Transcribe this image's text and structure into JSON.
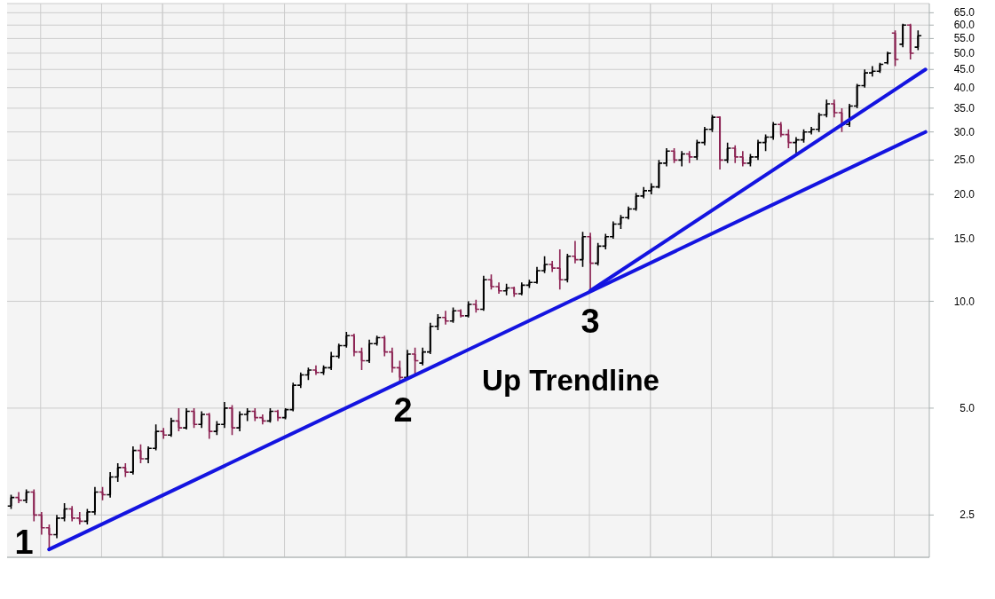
{
  "chart_data": {
    "type": "candlestick",
    "categories": [
      null,
      null,
      null,
      null,
      null,
      null,
      null,
      null,
      null,
      null,
      null,
      null,
      null,
      null,
      null,
      null,
      null,
      null,
      null,
      null,
      null,
      null,
      null,
      null,
      null,
      null,
      null,
      null,
      null,
      null,
      null,
      null,
      null,
      null,
      null,
      null,
      null,
      null,
      null,
      null,
      null,
      null,
      null,
      null,
      null,
      null,
      null,
      null,
      null,
      null,
      null,
      null,
      null,
      null,
      null,
      null,
      null,
      null,
      null,
      null,
      null,
      null,
      null,
      null,
      null,
      null,
      null,
      null,
      null,
      null,
      null,
      null,
      null,
      null,
      null,
      null,
      null,
      null,
      null,
      null,
      null,
      null,
      null,
      null,
      null,
      null,
      null,
      null,
      null,
      null,
      null,
      null,
      null,
      null,
      null,
      null,
      null,
      null,
      null,
      null,
      null,
      null,
      null,
      null,
      null,
      null,
      null,
      null,
      null,
      null,
      null,
      null,
      null,
      null,
      null,
      null,
      null,
      null,
      null,
      null,
      null
    ],
    "ohlc": [
      [
        2.65,
        2.85,
        2.6,
        2.8
      ],
      [
        2.8,
        2.9,
        2.7,
        2.75
      ],
      [
        2.75,
        2.95,
        2.7,
        2.9
      ],
      [
        2.9,
        2.95,
        2.4,
        2.5
      ],
      [
        2.5,
        2.55,
        2.2,
        2.3
      ],
      [
        2.3,
        2.35,
        2.0,
        2.2
      ],
      [
        2.2,
        2.5,
        2.15,
        2.45
      ],
      [
        2.45,
        2.7,
        2.4,
        2.6
      ],
      [
        2.6,
        2.65,
        2.4,
        2.45
      ],
      [
        2.45,
        2.55,
        2.35,
        2.4
      ],
      [
        2.4,
        2.6,
        2.35,
        2.55
      ],
      [
        2.55,
        3.0,
        2.5,
        2.9
      ],
      [
        2.9,
        3.0,
        2.75,
        2.85
      ],
      [
        2.85,
        3.3,
        2.8,
        3.2
      ],
      [
        3.2,
        3.5,
        3.1,
        3.4
      ],
      [
        3.4,
        3.5,
        3.2,
        3.3
      ],
      [
        3.3,
        3.9,
        3.25,
        3.8
      ],
      [
        3.8,
        3.95,
        3.5,
        3.6
      ],
      [
        3.6,
        3.9,
        3.5,
        3.85
      ],
      [
        3.85,
        4.5,
        3.8,
        4.3
      ],
      [
        4.3,
        4.4,
        4.1,
        4.2
      ],
      [
        4.2,
        4.7,
        4.15,
        4.6
      ],
      [
        4.6,
        5.0,
        4.3,
        4.4
      ],
      [
        4.4,
        5.0,
        4.35,
        4.9
      ],
      [
        4.9,
        5.0,
        4.4,
        4.5
      ],
      [
        4.5,
        4.9,
        4.4,
        4.8
      ],
      [
        4.8,
        4.85,
        4.1,
        4.3
      ],
      [
        4.3,
        4.6,
        4.2,
        4.5
      ],
      [
        4.5,
        5.2,
        4.4,
        5.0
      ],
      [
        5.0,
        5.1,
        4.2,
        4.4
      ],
      [
        4.4,
        4.9,
        4.3,
        4.8
      ],
      [
        4.8,
        5.0,
        4.6,
        4.9
      ],
      [
        4.9,
        5.0,
        4.6,
        4.7
      ],
      [
        4.7,
        4.8,
        4.5,
        4.6
      ],
      [
        4.6,
        5.0,
        4.55,
        4.9
      ],
      [
        4.9,
        4.95,
        4.6,
        4.7
      ],
      [
        4.7,
        5.0,
        4.65,
        4.95
      ],
      [
        4.95,
        5.9,
        4.9,
        5.8
      ],
      [
        5.8,
        6.3,
        5.7,
        6.2
      ],
      [
        6.2,
        6.5,
        6.0,
        6.4
      ],
      [
        6.4,
        6.6,
        6.2,
        6.3
      ],
      [
        6.3,
        6.6,
        6.2,
        6.5
      ],
      [
        6.5,
        7.2,
        6.4,
        7.0
      ],
      [
        7.0,
        7.6,
        6.9,
        7.5
      ],
      [
        7.5,
        8.2,
        7.4,
        8.0
      ],
      [
        8.0,
        8.1,
        7.0,
        7.2
      ],
      [
        7.2,
        7.4,
        6.4,
        6.8
      ],
      [
        6.8,
        7.8,
        6.7,
        7.6
      ],
      [
        7.6,
        8.0,
        7.5,
        7.9
      ],
      [
        7.9,
        8.0,
        7.0,
        7.2
      ],
      [
        7.2,
        7.4,
        6.3,
        6.5
      ],
      [
        6.5,
        6.8,
        5.9,
        6.1
      ],
      [
        6.1,
        7.3,
        6.1,
        7.1
      ],
      [
        7.1,
        7.4,
        6.2,
        6.8
      ],
      [
        6.7,
        7.4,
        6.6,
        7.2
      ],
      [
        7.2,
        8.7,
        7.1,
        8.5
      ],
      [
        8.5,
        9.2,
        8.3,
        9.0
      ],
      [
        9.0,
        9.4,
        8.6,
        8.8
      ],
      [
        8.8,
        9.6,
        8.7,
        9.4
      ],
      [
        9.4,
        9.5,
        9.0,
        9.1
      ],
      [
        9.1,
        10.0,
        9.0,
        9.8
      ],
      [
        9.8,
        10.1,
        9.3,
        9.5
      ],
      [
        9.5,
        11.8,
        9.4,
        11.5
      ],
      [
        11.5,
        11.9,
        10.8,
        11.0
      ],
      [
        11.0,
        11.3,
        10.5,
        10.7
      ],
      [
        10.7,
        11.2,
        10.4,
        10.9
      ],
      [
        10.9,
        11.0,
        10.3,
        10.5
      ],
      [
        10.5,
        11.3,
        10.4,
        11.1
      ],
      [
        11.1,
        11.5,
        10.9,
        11.3
      ],
      [
        11.3,
        12.5,
        11.2,
        12.2
      ],
      [
        12.2,
        13.4,
        12.0,
        12.7
      ],
      [
        12.7,
        13.0,
        12.1,
        12.4
      ],
      [
        12.4,
        14.0,
        10.8,
        11.5
      ],
      [
        11.5,
        13.6,
        11.3,
        13.4
      ],
      [
        13.4,
        14.8,
        12.8,
        13.1
      ],
      [
        13.1,
        15.7,
        12.5,
        15.2
      ],
      [
        15.2,
        15.6,
        10.7,
        12.8
      ],
      [
        12.8,
        14.6,
        12.6,
        14.3
      ],
      [
        14.3,
        15.5,
        14.0,
        15.2
      ],
      [
        15.2,
        16.8,
        15.0,
        16.5
      ],
      [
        16.5,
        17.5,
        16.0,
        17.2
      ],
      [
        17.2,
        18.5,
        17.0,
        18.2
      ],
      [
        18.2,
        20.2,
        18.0,
        19.8
      ],
      [
        19.8,
        21.0,
        19.5,
        20.5
      ],
      [
        20.5,
        21.5,
        20.0,
        21.0
      ],
      [
        21.0,
        25.0,
        20.8,
        24.5
      ],
      [
        24.5,
        27.0,
        24.0,
        26.5
      ],
      [
        26.5,
        27.0,
        24.5,
        25.0
      ],
      [
        25.0,
        26.5,
        24.0,
        26.0
      ],
      [
        26.0,
        26.5,
        24.5,
        25.5
      ],
      [
        25.5,
        28.5,
        25.0,
        28.0
      ],
      [
        28.0,
        31.0,
        27.5,
        30.5
      ],
      [
        30.5,
        33.5,
        30.0,
        33.0
      ],
      [
        33.0,
        33.2,
        23.5,
        25.0
      ],
      [
        25.0,
        28.0,
        24.5,
        27.0
      ],
      [
        27.0,
        27.5,
        24.5,
        25.5
      ],
      [
        25.5,
        26.5,
        24.0,
        24.5
      ],
      [
        24.5,
        26.0,
        24.0,
        25.5
      ],
      [
        25.5,
        28.5,
        25.0,
        28.0
      ],
      [
        28.0,
        29.5,
        26.5,
        29.0
      ],
      [
        29.0,
        32.0,
        28.5,
        31.5
      ],
      [
        31.5,
        32.0,
        29.0,
        29.5
      ],
      [
        29.5,
        30.5,
        27.0,
        28.0
      ],
      [
        28.0,
        29.0,
        26.0,
        28.5
      ],
      [
        28.5,
        30.5,
        28.0,
        30.0
      ],
      [
        30.0,
        31.0,
        29.5,
        30.5
      ],
      [
        30.5,
        34.0,
        30.0,
        33.5
      ],
      [
        33.5,
        37.0,
        33.0,
        36.0
      ],
      [
        36.0,
        37.0,
        33.0,
        34.0
      ],
      [
        34.0,
        35.0,
        30.0,
        31.5
      ],
      [
        31.5,
        36.0,
        31.0,
        35.5
      ],
      [
        35.5,
        41.0,
        35.0,
        40.5
      ],
      [
        40.5,
        45.0,
        40.0,
        44.0
      ],
      [
        44.0,
        46.0,
        43.0,
        44.5
      ],
      [
        44.5,
        47.0,
        44.0,
        46.5
      ],
      [
        47.0,
        50.5,
        46.5,
        50.0
      ],
      [
        57.0,
        58.0,
        46.0,
        48.0
      ],
      [
        53.0,
        60.5,
        52.0,
        60.0
      ],
      [
        60.0,
        60.5,
        48.0,
        50.0
      ],
      [
        52.0,
        58.0,
        51.0,
        56.0
      ],
      null
    ],
    "colors": [
      "#000000",
      "#8b2252",
      "#000000",
      "#8b2252",
      "#8b2252",
      "#8b2252",
      "#000000",
      "#000000",
      "#8b2252",
      "#8b2252",
      "#000000",
      "#000000",
      "#8b2252",
      "#000000",
      "#000000",
      "#8b2252",
      "#000000",
      "#8b2252",
      "#000000",
      "#000000",
      "#8b2252",
      "#000000",
      "#8b2252",
      "#000000",
      "#8b2252",
      "#000000",
      "#8b2252",
      "#000000",
      "#000000",
      "#8b2252",
      "#000000",
      "#000000",
      "#8b2252",
      "#8b2252",
      "#000000",
      "#8b2252",
      "#000000",
      "#000000",
      "#000000",
      "#000000",
      "#8b2252",
      "#000000",
      "#000000",
      "#000000",
      "#000000",
      "#8b2252",
      "#8b2252",
      "#000000",
      "#000000",
      "#8b2252",
      "#8b2252",
      "#8b2252",
      "#000000",
      "#8b2252",
      "#000000",
      "#000000",
      "#000000",
      "#8b2252",
      "#000000",
      "#8b2252",
      "#000000",
      "#8b2252",
      "#000000",
      "#8b2252",
      "#8b2252",
      "#000000",
      "#8b2252",
      "#000000",
      "#000000",
      "#000000",
      "#000000",
      "#8b2252",
      "#8b2252",
      "#000000",
      "#8b2252",
      "#000000",
      "#8b2252",
      "#000000",
      "#000000",
      "#000000",
      "#000000",
      "#000000",
      "#000000",
      "#000000",
      "#000000",
      "#000000",
      "#000000",
      "#8b2252",
      "#000000",
      "#8b2252",
      "#000000",
      "#000000",
      "#000000",
      "#8b2252",
      "#000000",
      "#8b2252",
      "#8b2252",
      "#000000",
      "#000000",
      "#000000",
      "#000000",
      "#8b2252",
      "#8b2252",
      "#000000",
      "#000000",
      "#000000",
      "#000000",
      "#000000",
      "#8b2252",
      "#8b2252",
      "#000000",
      "#000000",
      "#000000",
      "#000000",
      "#000000",
      "#000000",
      "#8b2252",
      "#000000",
      "#8b2252",
      "#000000",
      null
    ],
    "series": [
      {
        "type": "line",
        "color": "#1414e0",
        "values": [
          null,
          null,
          null,
          null,
          null,
          2,
          null,
          null,
          null,
          null,
          null,
          null,
          null,
          null,
          null,
          null,
          null,
          null,
          null,
          null,
          null,
          null,
          null,
          null,
          null,
          null,
          null,
          null,
          null,
          null,
          null,
          null,
          null,
          null,
          null,
          null,
          null,
          null,
          null,
          null,
          null,
          null,
          null,
          null,
          null,
          null,
          null,
          null,
          null,
          null,
          null,
          null,
          null,
          null,
          null,
          null,
          null,
          null,
          null,
          null,
          null,
          null,
          null,
          null,
          null,
          null,
          null,
          null,
          null,
          null,
          null,
          null,
          null,
          null,
          null,
          null,
          null,
          null,
          null,
          null,
          null,
          null,
          null,
          null,
          null,
          null,
          null,
          null,
          null,
          null,
          null,
          null,
          null,
          null,
          null,
          null,
          null,
          null,
          null,
          null,
          null,
          null,
          null,
          null,
          null,
          null,
          null,
          null,
          null,
          null,
          null,
          null,
          null,
          null,
          null,
          null,
          null,
          null,
          null,
          null,
          30
        ]
      },
      {
        "type": "line",
        "color": "#1414e0",
        "values": [
          null,
          null,
          null,
          null,
          null,
          null,
          null,
          null,
          null,
          null,
          null,
          null,
          null,
          null,
          null,
          null,
          null,
          null,
          null,
          null,
          null,
          null,
          null,
          null,
          null,
          null,
          null,
          null,
          null,
          null,
          null,
          null,
          null,
          null,
          null,
          null,
          null,
          null,
          null,
          null,
          null,
          null,
          null,
          null,
          null,
          null,
          null,
          null,
          null,
          null,
          null,
          null,
          null,
          null,
          null,
          null,
          null,
          null,
          null,
          null,
          null,
          null,
          null,
          null,
          null,
          null,
          null,
          null,
          null,
          null,
          null,
          null,
          null,
          null,
          null,
          null,
          10.7,
          null,
          null,
          null,
          null,
          null,
          null,
          null,
          null,
          null,
          null,
          null,
          null,
          null,
          null,
          null,
          null,
          null,
          null,
          null,
          null,
          null,
          null,
          null,
          null,
          null,
          null,
          null,
          null,
          null,
          null,
          null,
          null,
          null,
          null,
          null,
          null,
          null,
          null,
          null,
          null,
          null,
          null,
          null,
          45
        ]
      }
    ],
    "ylim": [
      1.9,
      69
    ],
    "yticks": [
      2.5,
      {
        "value": 5,
        "label": "5.0"
      },
      {
        "value": 10,
        "label": "10.0"
      },
      {
        "value": 15,
        "label": "15.0"
      },
      {
        "value": 20,
        "label": "20.0"
      },
      {
        "value": 25,
        "label": "25.0"
      },
      {
        "value": 30,
        "label": "30.0"
      },
      {
        "value": 35,
        "label": "35.0"
      },
      {
        "value": 40,
        "label": "40.0"
      },
      {
        "value": 45,
        "label": "45.0"
      },
      {
        "value": 50,
        "label": "50.0"
      },
      {
        "value": 55,
        "label": "55.0"
      },
      {
        "value": 60,
        "label": "60.0"
      },
      {
        "value": 65,
        "label": "65.0"
      }
    ],
    "log": true,
    "grid": true,
    "tick_labels": "y",
    "annotations": [
      "1",
      "2",
      "3",
      "Up Trendline"
    ]
  }
}
